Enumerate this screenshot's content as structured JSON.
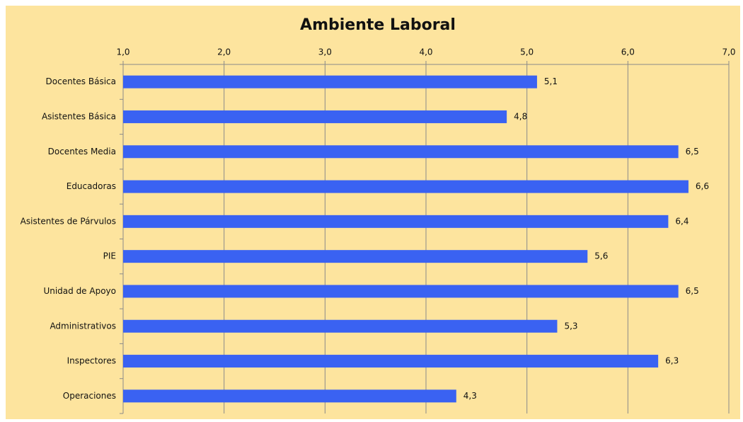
{
  "chart_data": {
    "type": "bar",
    "orientation": "horizontal",
    "title": "Ambiente Laboral",
    "categories": [
      "Docentes Básica",
      "Asistentes Básica",
      "Docentes Media",
      "Educadoras",
      "Asistentes de Párvulos",
      "PIE",
      "Unidad de Apoyo",
      "Administrativos",
      "Inspectores",
      "Operaciones"
    ],
    "values": [
      5.1,
      4.8,
      6.5,
      6.6,
      6.4,
      5.6,
      6.5,
      5.3,
      6.3,
      4.3
    ],
    "value_labels": [
      "5,1",
      "4,8",
      "6,5",
      "6,6",
      "6,4",
      "5,6",
      "6,5",
      "5,3",
      "6,3",
      "4,3"
    ],
    "color": "#3a62f2",
    "xlim": [
      1,
      7
    ],
    "xticks": [
      {
        "value": 1,
        "label": "1,0"
      },
      {
        "value": 2,
        "label": "2,0"
      },
      {
        "value": 3,
        "label": "3,0"
      },
      {
        "value": 4,
        "label": "4,0"
      },
      {
        "value": 5,
        "label": "5,0"
      },
      {
        "value": 6,
        "label": "6,0"
      },
      {
        "value": 7,
        "label": "7,0"
      }
    ],
    "grid": true
  }
}
